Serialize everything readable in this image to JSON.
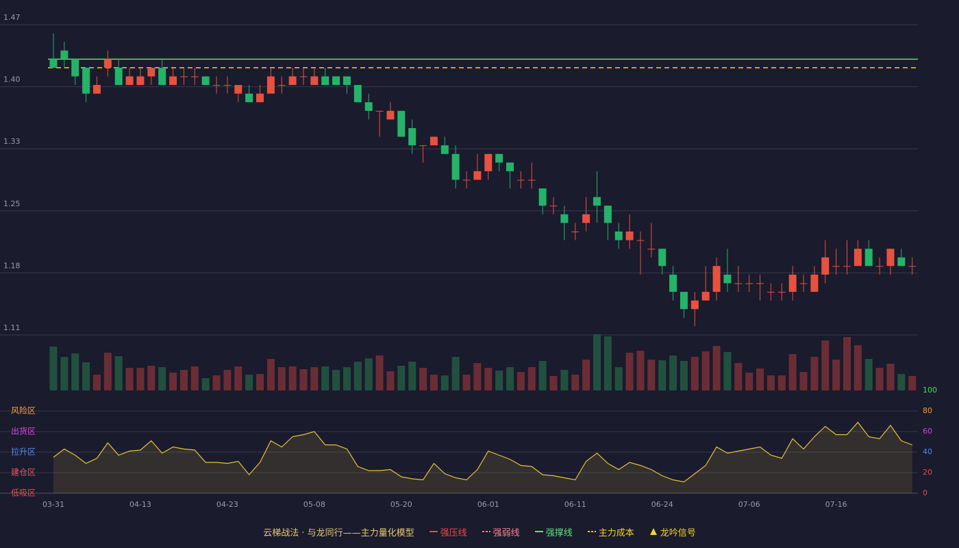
{
  "chart_data": {
    "type": "candlestick",
    "categories": [
      "03-31",
      null,
      null,
      null,
      null,
      null,
      null,
      null,
      "04-13",
      null,
      null,
      null,
      null,
      null,
      null,
      null,
      "04-23",
      null,
      null,
      null,
      null,
      null,
      null,
      null,
      "05-08",
      null,
      null,
      null,
      null,
      null,
      null,
      null,
      "05-20",
      null,
      null,
      null,
      null,
      null,
      null,
      null,
      "06-01",
      null,
      null,
      null,
      null,
      null,
      null,
      null,
      "06-11",
      null,
      null,
      null,
      null,
      null,
      null,
      null,
      "06-24",
      null,
      null,
      null,
      null,
      null,
      null,
      null,
      "07-06",
      null,
      null,
      null,
      null,
      null,
      null,
      null,
      "07-16",
      null,
      null,
      null,
      null,
      null,
      null,
      null
    ],
    "open": [
      1.43,
      1.44,
      1.43,
      1.42,
      1.39,
      1.42,
      1.42,
      1.4,
      1.4,
      1.41,
      1.42,
      1.4,
      1.41,
      1.41,
      1.41,
      1.4,
      1.4,
      1.39,
      1.39,
      1.38,
      1.39,
      1.4,
      1.4,
      1.41,
      1.4,
      1.41,
      1.41,
      1.41,
      1.4,
      1.38,
      1.37,
      1.36,
      1.37,
      1.35,
      1.33,
      1.33,
      1.33,
      1.32,
      1.29,
      1.29,
      1.3,
      1.32,
      1.31,
      1.29,
      1.29,
      1.28,
      1.26,
      1.25,
      1.23,
      1.24,
      1.27,
      1.26,
      1.23,
      1.22,
      1.22,
      1.21,
      1.21,
      1.18,
      1.16,
      1.14,
      1.15,
      1.16,
      1.18,
      1.17,
      1.17,
      1.17,
      1.16,
      1.16,
      1.16,
      1.17,
      1.16,
      1.18,
      1.19,
      1.19,
      1.19,
      1.21,
      1.19,
      1.19,
      1.2,
      1.19
    ],
    "high": [
      1.46,
      1.45,
      1.43,
      1.42,
      1.41,
      1.44,
      1.43,
      1.42,
      1.42,
      1.42,
      1.43,
      1.42,
      1.42,
      1.42,
      1.41,
      1.41,
      1.41,
      1.4,
      1.4,
      1.4,
      1.42,
      1.41,
      1.42,
      1.42,
      1.42,
      1.42,
      1.41,
      1.41,
      1.4,
      1.39,
      1.37,
      1.38,
      1.37,
      1.36,
      1.33,
      1.34,
      1.34,
      1.33,
      1.3,
      1.32,
      1.32,
      1.32,
      1.31,
      1.3,
      1.31,
      1.28,
      1.27,
      1.26,
      1.24,
      1.27,
      1.3,
      1.26,
      1.24,
      1.25,
      1.23,
      1.24,
      1.21,
      1.19,
      1.16,
      1.16,
      1.19,
      1.2,
      1.21,
      1.19,
      1.18,
      1.18,
      1.17,
      1.17,
      1.19,
      1.18,
      1.19,
      1.22,
      1.21,
      1.22,
      1.22,
      1.22,
      1.2,
      1.21,
      1.21,
      1.2
    ],
    "low": [
      1.42,
      1.42,
      1.4,
      1.38,
      1.39,
      1.41,
      1.4,
      1.4,
      1.4,
      1.4,
      1.4,
      1.4,
      1.4,
      1.4,
      1.4,
      1.39,
      1.39,
      1.38,
      1.38,
      1.38,
      1.39,
      1.39,
      1.4,
      1.4,
      1.4,
      1.4,
      1.4,
      1.39,
      1.38,
      1.36,
      1.34,
      1.36,
      1.34,
      1.32,
      1.31,
      1.33,
      1.32,
      1.28,
      1.28,
      1.29,
      1.29,
      1.3,
      1.28,
      1.28,
      1.28,
      1.25,
      1.25,
      1.22,
      1.22,
      1.23,
      1.24,
      1.22,
      1.21,
      1.21,
      1.18,
      1.2,
      1.18,
      1.15,
      1.13,
      1.12,
      1.15,
      1.15,
      1.16,
      1.16,
      1.16,
      1.15,
      1.15,
      1.15,
      1.15,
      1.16,
      1.16,
      1.17,
      1.18,
      1.18,
      1.19,
      1.19,
      1.18,
      1.18,
      1.19,
      1.18
    ],
    "close": [
      1.42,
      1.43,
      1.41,
      1.39,
      1.4,
      1.43,
      1.4,
      1.41,
      1.41,
      1.42,
      1.4,
      1.41,
      1.41,
      1.41,
      1.4,
      1.4,
      1.4,
      1.4,
      1.38,
      1.39,
      1.41,
      1.4,
      1.41,
      1.41,
      1.41,
      1.4,
      1.4,
      1.4,
      1.38,
      1.37,
      1.37,
      1.37,
      1.34,
      1.33,
      1.33,
      1.34,
      1.32,
      1.29,
      1.29,
      1.3,
      1.32,
      1.31,
      1.3,
      1.29,
      1.29,
      1.26,
      1.26,
      1.24,
      1.23,
      1.25,
      1.26,
      1.24,
      1.22,
      1.23,
      1.22,
      1.21,
      1.19,
      1.16,
      1.14,
      1.15,
      1.16,
      1.19,
      1.17,
      1.17,
      1.17,
      1.17,
      1.16,
      1.16,
      1.18,
      1.17,
      1.18,
      1.2,
      1.19,
      1.19,
      1.21,
      1.19,
      1.19,
      1.21,
      1.19,
      1.19
    ],
    "volume": [
      64,
      49,
      54,
      41,
      23,
      55,
      50,
      33,
      33,
      36,
      34,
      26,
      30,
      35,
      18,
      22,
      30,
      35,
      23,
      24,
      46,
      34,
      35,
      31,
      34,
      35,
      30,
      34,
      42,
      47,
      51,
      28,
      36,
      42,
      33,
      23,
      22,
      49,
      23,
      40,
      33,
      29,
      34,
      27,
      34,
      43,
      21,
      30,
      23,
      45,
      82,
      79,
      34,
      55,
      58,
      45,
      44,
      51,
      43,
      49,
      57,
      65,
      56,
      40,
      26,
      32,
      22,
      22,
      53,
      27,
      49,
      73,
      45,
      78,
      66,
      46,
      33,
      39,
      24,
      21
    ],
    "up_color": "#e8513f",
    "down_color": "#25b36a",
    "ylim": [
      1.11,
      1.47
    ],
    "yticks": [
      1.11,
      {
        "value": 1.182,
        "label": "1.18"
      },
      {
        "value": 1.254,
        "label": "1.25"
      },
      {
        "value": 1.326,
        "label": "1.33"
      },
      {
        "value": 1.398,
        "label": "1.40"
      },
      1.47
    ],
    "grid": true,
    "support_line": {
      "value": 1.43,
      "color": "#5fe07a"
    },
    "cost_line": {
      "value": 1.42,
      "color": "#f5d130"
    },
    "indicator": {
      "values": [
        35,
        43,
        37,
        29,
        34,
        49,
        37,
        41,
        42,
        51,
        39,
        45,
        43,
        42,
        30,
        30,
        29,
        31,
        18,
        30,
        51,
        45,
        55,
        57,
        60,
        47,
        47,
        43,
        26,
        22,
        22,
        23,
        16,
        14,
        13,
        29,
        19,
        15,
        13,
        23,
        41,
        37,
        33,
        27,
        26,
        18,
        17,
        15,
        13,
        31,
        39,
        29,
        23,
        30,
        27,
        23,
        17,
        13,
        11,
        19,
        27,
        45,
        39,
        41,
        43,
        45,
        37,
        34,
        53,
        43,
        55,
        65,
        57,
        57,
        69,
        55,
        53,
        66,
        51,
        47
      ],
      "color": "#e8c23a",
      "ylim": [
        0,
        100
      ],
      "yticks": [
        0,
        20,
        40,
        60,
        80,
        100
      ],
      "ytick_colors": [
        "#f04848",
        "#f04848",
        "#4a8cf0",
        "#e040e0",
        "#f0a030",
        "#3ee05a"
      ],
      "zones": [
        {
          "label": "风险区",
          "value": 80,
          "color": "#f0a030"
        },
        {
          "label": "出货区",
          "value": 60,
          "color": "#e040e0"
        },
        {
          "label": "拉升区",
          "value": 40,
          "color": "#4a8cf0"
        },
        {
          "label": "建仓区",
          "value": 20,
          "color": "#f05060"
        },
        {
          "label": "低吸区",
          "value": 0,
          "color": "#f04848"
        }
      ]
    },
    "legend": {
      "title": "云梯战法 · 与龙同行——主力量化模型",
      "title_color": "#e8c870",
      "items": [
        {
          "name": "强压线",
          "color": "#f04848",
          "style": "solid"
        },
        {
          "name": "强弱线",
          "color": "#ff8090",
          "style": "dashed"
        },
        {
          "name": "强撑线",
          "color": "#5fe07a",
          "style": "solid"
        },
        {
          "name": "主力成本",
          "color": "#f5d130",
          "style": "dashed"
        },
        {
          "name": "龙吟信号",
          "color": "#f5d130",
          "style": "triangle"
        }
      ]
    }
  }
}
